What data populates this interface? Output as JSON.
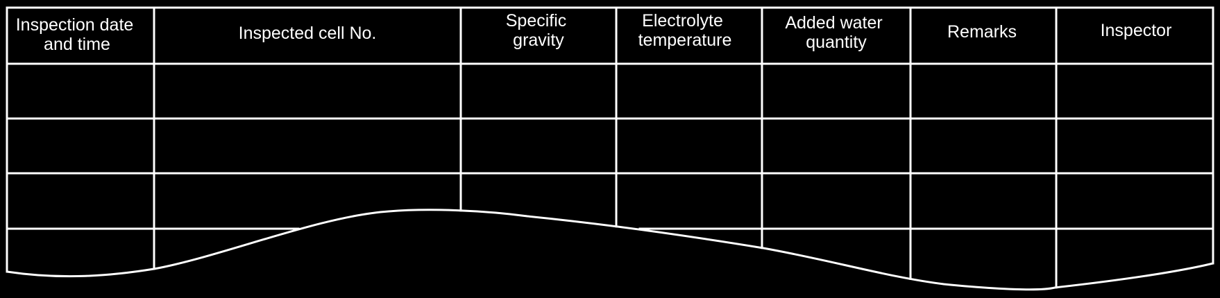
{
  "form": {
    "headers": [
      {
        "lines": [
          "Inspection date",
          "and time"
        ]
      },
      {
        "lines": [
          "Inspected cell No."
        ]
      },
      {
        "lines": [
          "Specific",
          "gravity"
        ]
      },
      {
        "lines": [
          "Electrolyte",
          "temperature"
        ]
      },
      {
        "lines": [
          "Added water",
          "quantity"
        ]
      },
      {
        "lines": [
          "Remarks"
        ]
      },
      {
        "lines": [
          "Inspector"
        ]
      }
    ],
    "blank_rows": 4
  },
  "colors": {
    "background": "#000000",
    "lines": "#ffffff",
    "text": "#ffffff"
  }
}
